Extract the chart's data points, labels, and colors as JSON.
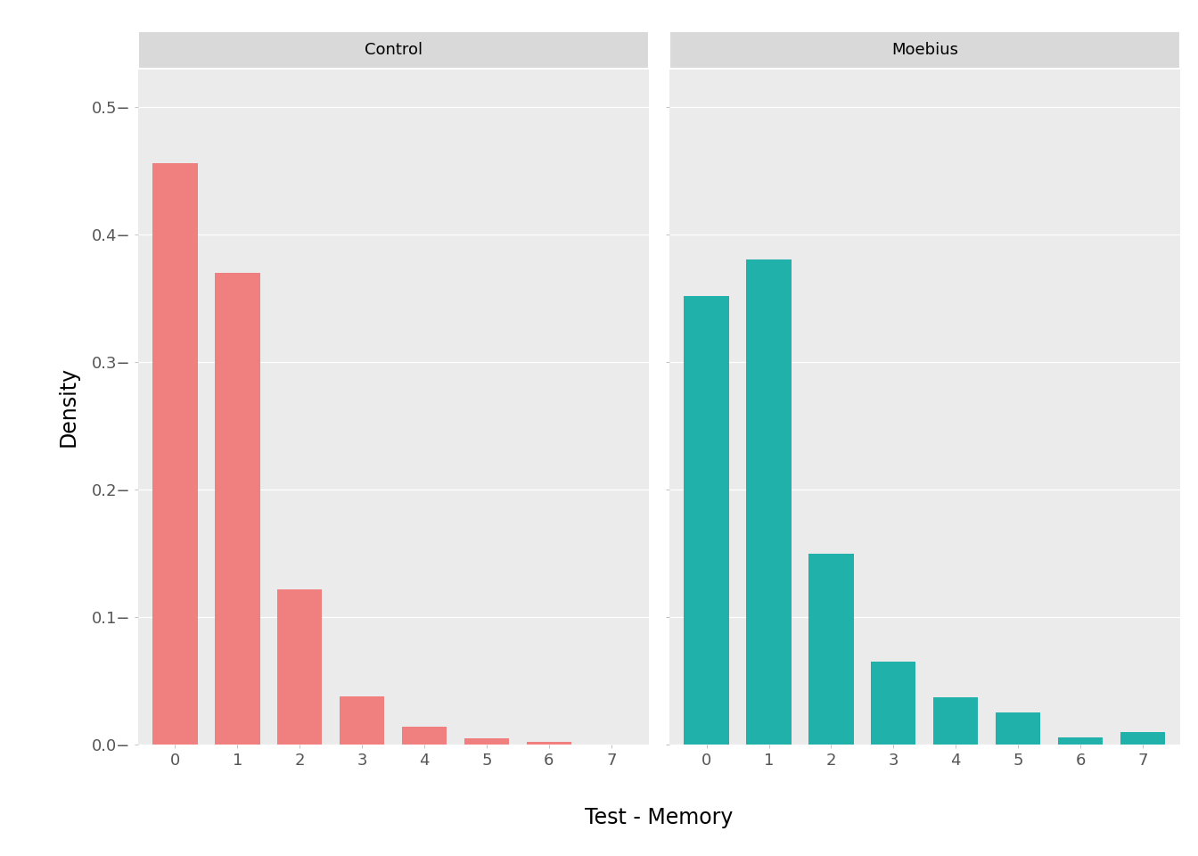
{
  "control": {
    "label": "Control",
    "x": [
      0,
      1,
      2,
      3,
      4,
      5,
      6,
      7
    ],
    "density": [
      0.456,
      0.37,
      0.122,
      0.038,
      0.014,
      0.005,
      0.002,
      0.0
    ],
    "color": "#F08080",
    "xlim": [
      -0.6,
      7.6
    ],
    "xticks": [
      0,
      1,
      2,
      3,
      4,
      5,
      6,
      7
    ]
  },
  "moebius": {
    "label": "Moebius",
    "x": [
      0,
      1,
      2,
      3,
      4,
      5,
      6,
      7
    ],
    "density": [
      0.352,
      0.38,
      0.15,
      0.065,
      0.037,
      0.025,
      0.006,
      0.01
    ],
    "color": "#20B2AA",
    "xlim": [
      -0.6,
      7.6
    ],
    "xticks": [
      0,
      1,
      2,
      3,
      4,
      5,
      6,
      7
    ]
  },
  "ylim": [
    0,
    0.53
  ],
  "yticks": [
    0.0,
    0.1,
    0.2,
    0.3,
    0.4,
    0.5
  ],
  "ytick_labels": [
    "0.0",
    "0.1",
    "0.2",
    "0.3",
    "0.4",
    "0.5"
  ],
  "ylabel": "Density",
  "xlabel": "Test - Memory",
  "panel_bg": "#EBEBEB",
  "strip_bg": "#D9D9D9",
  "outer_bg": "#FFFFFF",
  "bar_width": 0.72,
  "axis_label_fontsize": 17,
  "tick_label_fontsize": 13,
  "strip_fontsize": 13
}
